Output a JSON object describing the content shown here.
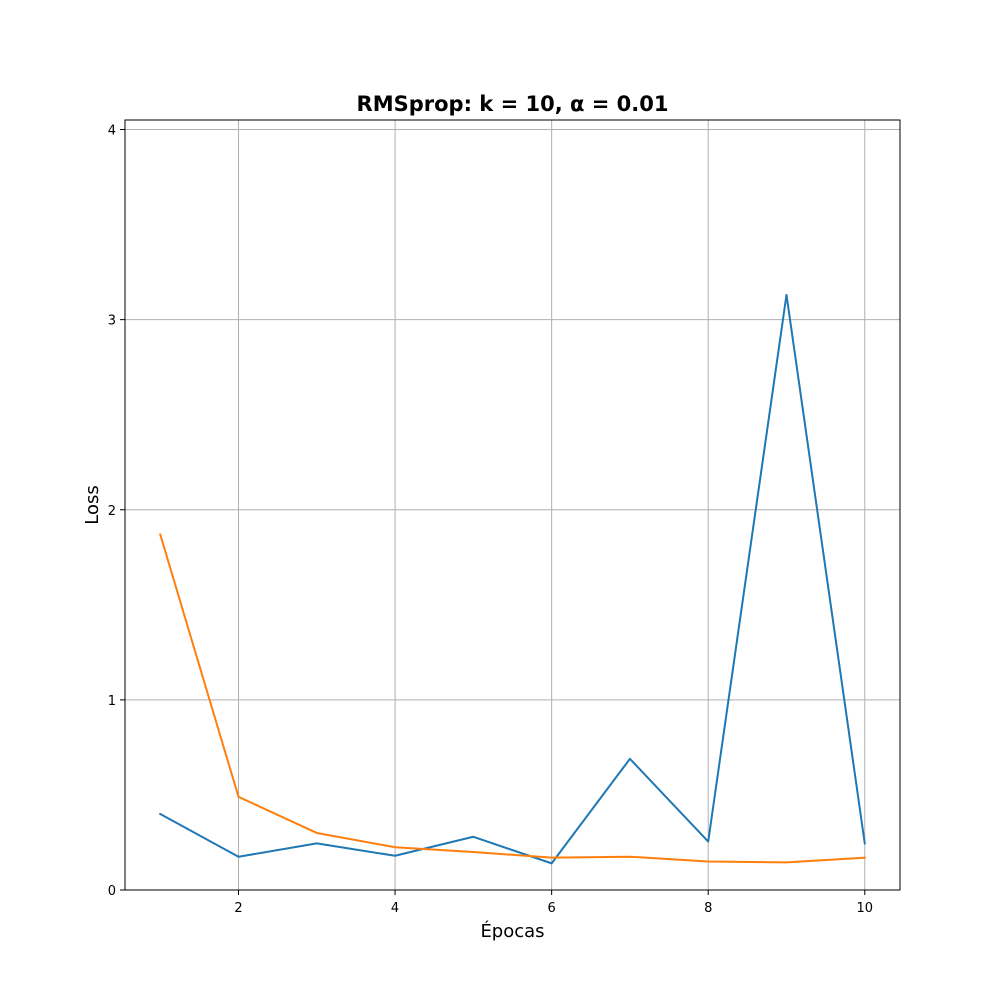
{
  "chart_data": {
    "type": "line",
    "title": "RMSprop: k = 10, α = 0.01",
    "xlabel": "Épocas",
    "ylabel": "Loss",
    "x": [
      1,
      2,
      3,
      4,
      5,
      6,
      7,
      8,
      9,
      10
    ],
    "xlim": [
      0.55,
      10.45
    ],
    "ylim": [
      0,
      4.05
    ],
    "xticks": [
      2,
      4,
      6,
      8,
      10
    ],
    "yticks": [
      0,
      1,
      2,
      3,
      4
    ],
    "grid": true,
    "series": [
      {
        "color": "#1f77b4",
        "values": [
          0.4,
          0.175,
          0.245,
          0.18,
          0.28,
          0.14,
          0.69,
          0.255,
          3.13,
          0.245
        ]
      },
      {
        "color": "#ff7f0e",
        "values": [
          1.87,
          0.49,
          0.3,
          0.225,
          0.2,
          0.17,
          0.175,
          0.15,
          0.145,
          0.17
        ]
      }
    ]
  }
}
